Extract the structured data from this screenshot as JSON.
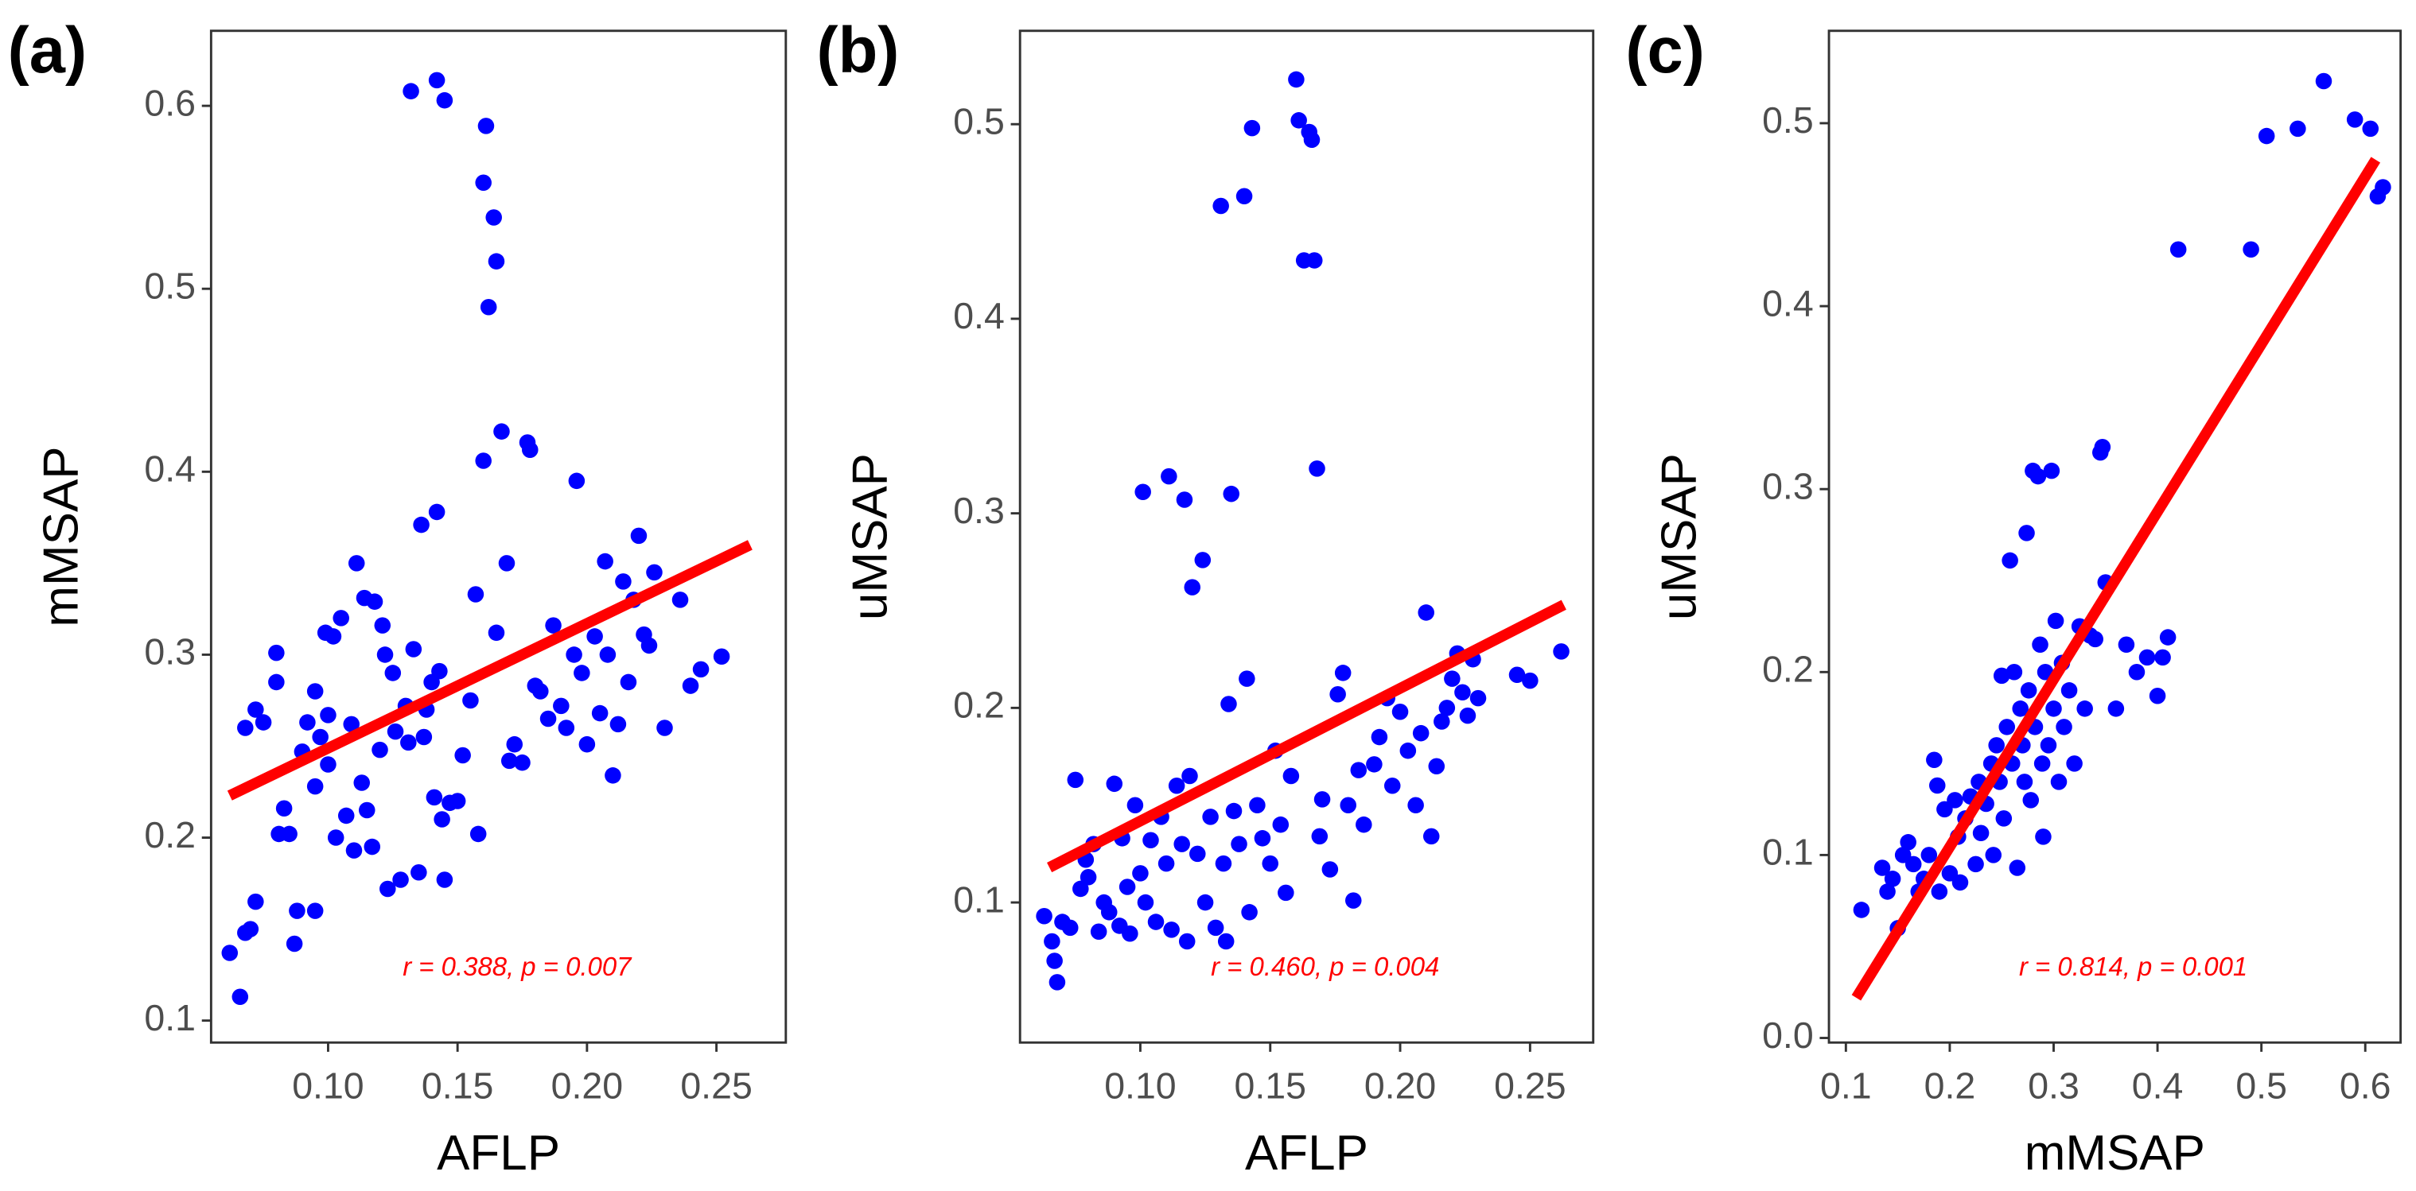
{
  "chart_data": [
    {
      "type": "scatter",
      "panel_label": "(a)",
      "x_label": "AFLP",
      "y_label": "mMSAP",
      "annotation": "r = 0.388, p = 0.007",
      "xlim": [
        0.0548,
        0.2768
      ],
      "ylim": [
        0.088,
        0.641
      ],
      "xticks": [
        {
          "value": 0.1,
          "label": "0.10"
        },
        {
          "value": 0.15,
          "label": "0.15"
        },
        {
          "value": 0.2,
          "label": "0.20"
        },
        {
          "value": 0.25,
          "label": "0.25"
        }
      ],
      "yticks": [
        0.1,
        0.2,
        0.3,
        0.4,
        0.5,
        0.6
      ],
      "color": "#0000ff",
      "fit_color": "#ff0000",
      "fit": {
        "x": [
          0.062,
          0.263
        ],
        "values": [
          0.223,
          0.36
        ]
      },
      "x": [
        0.062,
        0.066,
        0.068,
        0.07,
        0.072,
        0.068,
        0.072,
        0.075,
        0.08,
        0.08,
        0.081,
        0.083,
        0.085,
        0.087,
        0.088,
        0.09,
        0.092,
        0.095,
        0.095,
        0.095,
        0.097,
        0.099,
        0.1,
        0.1,
        0.102,
        0.103,
        0.105,
        0.107,
        0.109,
        0.11,
        0.111,
        0.113,
        0.114,
        0.115,
        0.117,
        0.118,
        0.12,
        0.121,
        0.122,
        0.123,
        0.125,
        0.126,
        0.128,
        0.13,
        0.131,
        0.132,
        0.133,
        0.135,
        0.136,
        0.137,
        0.138,
        0.14,
        0.141,
        0.142,
        0.142,
        0.143,
        0.144,
        0.145,
        0.145,
        0.147,
        0.15,
        0.152,
        0.155,
        0.157,
        0.158,
        0.16,
        0.16,
        0.161,
        0.162,
        0.164,
        0.165,
        0.165,
        0.167,
        0.169,
        0.17,
        0.172,
        0.175,
        0.177,
        0.178,
        0.18,
        0.182,
        0.185,
        0.187,
        0.19,
        0.192,
        0.195,
        0.196,
        0.198,
        0.2,
        0.203,
        0.205,
        0.207,
        0.208,
        0.21,
        0.212,
        0.214,
        0.216,
        0.218,
        0.22,
        0.222,
        0.224,
        0.226,
        0.23,
        0.236,
        0.24,
        0.244,
        0.252
      ],
      "values": [
        0.137,
        0.113,
        0.148,
        0.15,
        0.165,
        0.26,
        0.27,
        0.263,
        0.285,
        0.301,
        0.202,
        0.216,
        0.202,
        0.142,
        0.16,
        0.247,
        0.263,
        0.28,
        0.228,
        0.16,
        0.255,
        0.312,
        0.267,
        0.24,
        0.31,
        0.2,
        0.32,
        0.212,
        0.262,
        0.193,
        0.35,
        0.23,
        0.331,
        0.215,
        0.195,
        0.329,
        0.248,
        0.316,
        0.3,
        0.172,
        0.29,
        0.258,
        0.177,
        0.272,
        0.252,
        0.608,
        0.303,
        0.181,
        0.371,
        0.255,
        0.27,
        0.285,
        0.222,
        0.378,
        0.614,
        0.291,
        0.21,
        0.603,
        0.177,
        0.219,
        0.22,
        0.245,
        0.275,
        0.333,
        0.202,
        0.406,
        0.558,
        0.589,
        0.49,
        0.539,
        0.515,
        0.312,
        0.422,
        0.35,
        0.242,
        0.251,
        0.241,
        0.416,
        0.412,
        0.283,
        0.28,
        0.265,
        0.316,
        0.272,
        0.26,
        0.3,
        0.395,
        0.29,
        0.251,
        0.31,
        0.268,
        0.351,
        0.3,
        0.234,
        0.262,
        0.34,
        0.285,
        0.33,
        0.365,
        0.311,
        0.305,
        0.345,
        0.26,
        0.33,
        0.283,
        0.292,
        0.299
      ]
    },
    {
      "type": "scatter",
      "panel_label": "(b)",
      "x_label": "AFLP",
      "y_label": "uMSAP",
      "annotation": "r = 0.460, p = 0.004",
      "xlim": [
        0.0537,
        0.2743
      ],
      "ylim": [
        0.028,
        0.548
      ],
      "xticks": [
        {
          "value": 0.1,
          "label": "0.10"
        },
        {
          "value": 0.15,
          "label": "0.15"
        },
        {
          "value": 0.2,
          "label": "0.20"
        },
        {
          "value": 0.25,
          "label": "0.25"
        }
      ],
      "yticks": [
        0.1,
        0.2,
        0.3,
        0.4,
        0.5
      ],
      "color": "#0000ff",
      "fit_color": "#ff0000",
      "fit": {
        "x": [
          0.065,
          0.263
        ],
        "values": [
          0.118,
          0.253
        ]
      },
      "x": [
        0.063,
        0.066,
        0.067,
        0.068,
        0.07,
        0.073,
        0.075,
        0.077,
        0.079,
        0.08,
        0.082,
        0.084,
        0.086,
        0.088,
        0.09,
        0.092,
        0.093,
        0.095,
        0.096,
        0.098,
        0.1,
        0.101,
        0.102,
        0.104,
        0.106,
        0.108,
        0.11,
        0.111,
        0.112,
        0.114,
        0.116,
        0.117,
        0.118,
        0.119,
        0.12,
        0.122,
        0.124,
        0.125,
        0.127,
        0.129,
        0.131,
        0.132,
        0.133,
        0.134,
        0.135,
        0.136,
        0.138,
        0.14,
        0.141,
        0.142,
        0.143,
        0.145,
        0.147,
        0.15,
        0.152,
        0.154,
        0.156,
        0.158,
        0.16,
        0.161,
        0.163,
        0.165,
        0.166,
        0.167,
        0.168,
        0.169,
        0.17,
        0.173,
        0.176,
        0.178,
        0.18,
        0.182,
        0.184,
        0.186,
        0.19,
        0.192,
        0.195,
        0.197,
        0.2,
        0.203,
        0.206,
        0.208,
        0.21,
        0.212,
        0.214,
        0.216,
        0.218,
        0.22,
        0.222,
        0.224,
        0.226,
        0.228,
        0.23,
        0.245,
        0.25,
        0.262
      ],
      "values": [
        0.093,
        0.08,
        0.07,
        0.059,
        0.09,
        0.087,
        0.163,
        0.107,
        0.122,
        0.113,
        0.13,
        0.085,
        0.1,
        0.095,
        0.161,
        0.088,
        0.133,
        0.108,
        0.084,
        0.15,
        0.115,
        0.311,
        0.1,
        0.132,
        0.09,
        0.144,
        0.12,
        0.319,
        0.086,
        0.16,
        0.13,
        0.307,
        0.08,
        0.165,
        0.262,
        0.125,
        0.276,
        0.1,
        0.144,
        0.087,
        0.458,
        0.12,
        0.08,
        0.202,
        0.31,
        0.147,
        0.13,
        0.463,
        0.215,
        0.095,
        0.498,
        0.15,
        0.133,
        0.12,
        0.178,
        0.14,
        0.105,
        0.165,
        0.523,
        0.502,
        0.43,
        0.496,
        0.492,
        0.43,
        0.323,
        0.134,
        0.153,
        0.117,
        0.207,
        0.218,
        0.15,
        0.101,
        0.168,
        0.14,
        0.171,
        0.185,
        0.205,
        0.16,
        0.198,
        0.178,
        0.15,
        0.187,
        0.249,
        0.134,
        0.17,
        0.193,
        0.2,
        0.215,
        0.228,
        0.208,
        0.196,
        0.225,
        0.205,
        0.217,
        0.214,
        0.229
      ]
    },
    {
      "type": "scatter",
      "panel_label": "(c)",
      "x_label": "mMSAP",
      "y_label": "uMSAP",
      "annotation": "r = 0.814, p = 0.001",
      "xlim": [
        0.0837,
        0.634
      ],
      "ylim": [
        -0.0025,
        0.5505
      ],
      "xticks": [
        0.1,
        0.2,
        0.3,
        0.4,
        0.5,
        0.6
      ],
      "yticks": [
        {
          "value": 0,
          "label": "0.0"
        },
        0.1,
        0.2,
        0.3,
        0.4,
        0.5
      ],
      "color": "#0000ff",
      "fit_color": "#ff0000",
      "fit": {
        "x": [
          0.11,
          0.61
        ],
        "values": [
          0.022,
          0.48
        ]
      },
      "x": [
        0.115,
        0.135,
        0.14,
        0.145,
        0.15,
        0.155,
        0.16,
        0.165,
        0.17,
        0.175,
        0.18,
        0.185,
        0.188,
        0.19,
        0.195,
        0.2,
        0.205,
        0.208,
        0.21,
        0.215,
        0.22,
        0.225,
        0.228,
        0.23,
        0.235,
        0.24,
        0.242,
        0.245,
        0.248,
        0.25,
        0.252,
        0.255,
        0.258,
        0.26,
        0.262,
        0.265,
        0.268,
        0.27,
        0.272,
        0.274,
        0.276,
        0.278,
        0.28,
        0.282,
        0.285,
        0.287,
        0.289,
        0.29,
        0.292,
        0.295,
        0.298,
        0.3,
        0.302,
        0.305,
        0.308,
        0.31,
        0.315,
        0.32,
        0.325,
        0.33,
        0.335,
        0.34,
        0.345,
        0.347,
        0.35,
        0.36,
        0.37,
        0.38,
        0.39,
        0.4,
        0.405,
        0.41,
        0.42,
        0.49,
        0.505,
        0.535,
        0.56,
        0.59,
        0.605,
        0.612,
        0.617
      ],
      "values": [
        0.07,
        0.093,
        0.08,
        0.087,
        0.06,
        0.1,
        0.107,
        0.095,
        0.08,
        0.087,
        0.1,
        0.152,
        0.138,
        0.08,
        0.125,
        0.09,
        0.13,
        0.11,
        0.085,
        0.12,
        0.132,
        0.095,
        0.14,
        0.112,
        0.128,
        0.15,
        0.1,
        0.16,
        0.14,
        0.198,
        0.12,
        0.17,
        0.261,
        0.15,
        0.2,
        0.093,
        0.18,
        0.16,
        0.14,
        0.276,
        0.19,
        0.13,
        0.31,
        0.17,
        0.307,
        0.215,
        0.15,
        0.11,
        0.2,
        0.16,
        0.31,
        0.18,
        0.228,
        0.14,
        0.205,
        0.17,
        0.19,
        0.15,
        0.225,
        0.18,
        0.22,
        0.218,
        0.32,
        0.323,
        0.249,
        0.18,
        0.215,
        0.2,
        0.208,
        0.187,
        0.208,
        0.219,
        0.431,
        0.431,
        0.493,
        0.497,
        0.523,
        0.502,
        0.497,
        0.46,
        0.465
      ]
    }
  ]
}
